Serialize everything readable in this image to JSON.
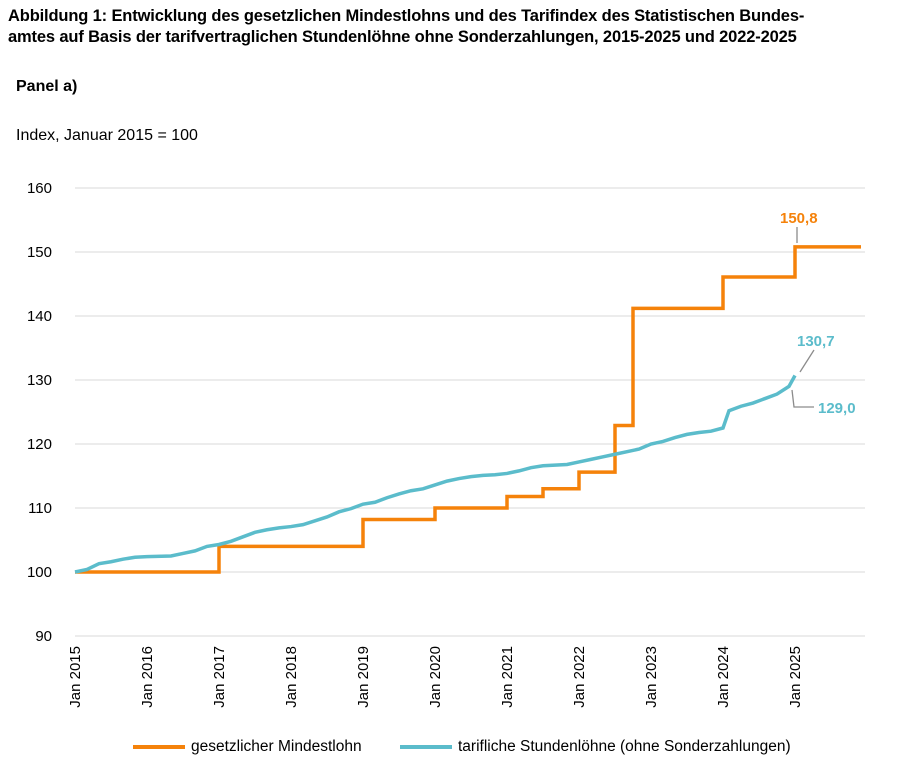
{
  "title_line1": "Abbildung 1: Entwicklung des gesetzlichen Mindestlohns und des Tarifindex des Statistischen Bundes-",
  "title_line2": "amtes auf Basis der tarifvertraglichen Stundenlöhne ohne Sonderzahlungen, 2015-2025 und 2022-2025",
  "panel_label": "Panel a)",
  "colors": {
    "mindestlohn": "#F5820A",
    "tarif": "#5BBCCB",
    "grid": "#D9D9D9"
  },
  "chart_data": {
    "type": "line",
    "ylabel": "Index, Januar 2015 = 100",
    "ylim": [
      90,
      160
    ],
    "yticks": [
      90,
      100,
      110,
      120,
      130,
      140,
      150,
      160
    ],
    "xlim": [
      "2015-01",
      "2025-12"
    ],
    "xtick_labels": [
      "Jan 2015",
      "Jan 2016",
      "Jan 2017",
      "Jan 2018",
      "Jan 2019",
      "Jan 2020",
      "Jan 2021",
      "Jan 2022",
      "Jan 2023",
      "Jan 2024",
      "Jan 2025"
    ],
    "grid": true,
    "legend_position": "bottom",
    "series": [
      {
        "name": "gesetzlicher Mindestlohn",
        "step": true,
        "points": [
          [
            "2015-01",
            100.0
          ],
          [
            "2017-01",
            104.0
          ],
          [
            "2019-01",
            108.2
          ],
          [
            "2020-01",
            110.0
          ],
          [
            "2021-01",
            111.8
          ],
          [
            "2021-07",
            113.0
          ],
          [
            "2022-01",
            115.6
          ],
          [
            "2022-07",
            122.9
          ],
          [
            "2022-10",
            141.2
          ],
          [
            "2024-01",
            146.1
          ],
          [
            "2025-01",
            150.8
          ],
          [
            "2025-12",
            150.8
          ]
        ]
      },
      {
        "name": "tarifliche Stundenlöhne (ohne Sonderzahlungen)",
        "step": false,
        "points": [
          [
            "2015-01",
            100.0
          ],
          [
            "2015-03",
            100.4
          ],
          [
            "2015-05",
            101.3
          ],
          [
            "2015-07",
            101.6
          ],
          [
            "2015-09",
            102.0
          ],
          [
            "2015-11",
            102.3
          ],
          [
            "2016-01",
            102.4
          ],
          [
            "2016-05",
            102.5
          ],
          [
            "2016-07",
            102.9
          ],
          [
            "2016-09",
            103.3
          ],
          [
            "2016-11",
            104.0
          ],
          [
            "2017-01",
            104.3
          ],
          [
            "2017-03",
            104.8
          ],
          [
            "2017-05",
            105.5
          ],
          [
            "2017-07",
            106.2
          ],
          [
            "2017-09",
            106.6
          ],
          [
            "2017-11",
            106.9
          ],
          [
            "2018-01",
            107.1
          ],
          [
            "2018-03",
            107.4
          ],
          [
            "2018-05",
            108.0
          ],
          [
            "2018-07",
            108.6
          ],
          [
            "2018-09",
            109.4
          ],
          [
            "2018-11",
            109.9
          ],
          [
            "2019-01",
            110.6
          ],
          [
            "2019-03",
            110.9
          ],
          [
            "2019-05",
            111.6
          ],
          [
            "2019-07",
            112.2
          ],
          [
            "2019-09",
            112.7
          ],
          [
            "2019-11",
            113.0
          ],
          [
            "2020-01",
            113.6
          ],
          [
            "2020-03",
            114.2
          ],
          [
            "2020-05",
            114.6
          ],
          [
            "2020-07",
            114.9
          ],
          [
            "2020-09",
            115.1
          ],
          [
            "2020-11",
            115.2
          ],
          [
            "2021-01",
            115.4
          ],
          [
            "2021-03",
            115.8
          ],
          [
            "2021-05",
            116.3
          ],
          [
            "2021-07",
            116.6
          ],
          [
            "2021-09",
            116.7
          ],
          [
            "2021-11",
            116.8
          ],
          [
            "2022-01",
            117.2
          ],
          [
            "2022-03",
            117.6
          ],
          [
            "2022-05",
            118.0
          ],
          [
            "2022-07",
            118.4
          ],
          [
            "2022-09",
            118.8
          ],
          [
            "2022-11",
            119.2
          ],
          [
            "2023-01",
            120.0
          ],
          [
            "2023-03",
            120.4
          ],
          [
            "2023-05",
            121.0
          ],
          [
            "2023-07",
            121.5
          ],
          [
            "2023-09",
            121.8
          ],
          [
            "2023-11",
            122.0
          ],
          [
            "2024-01",
            122.5
          ],
          [
            "2024-02",
            125.2
          ],
          [
            "2024-04",
            125.9
          ],
          [
            "2024-06",
            126.4
          ],
          [
            "2024-08",
            127.1
          ],
          [
            "2024-10",
            127.8
          ],
          [
            "2024-12",
            129.0
          ],
          [
            "2025-01",
            130.7
          ]
        ]
      }
    ],
    "annotations": [
      {
        "label": "150,8",
        "series": 0
      },
      {
        "label": "130,7",
        "series": 1
      },
      {
        "label": "129,0",
        "series": 1
      }
    ]
  }
}
